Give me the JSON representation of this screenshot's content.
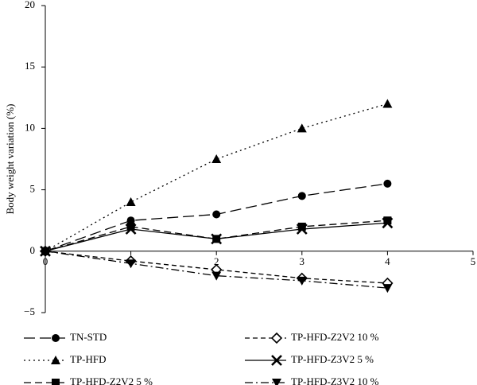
{
  "chart_data": {
    "type": "line",
    "y_label": "Body weight variation (%)",
    "x": [
      0,
      1,
      2,
      3,
      4
    ],
    "xlim": [
      0,
      5
    ],
    "xticks": [
      0,
      1,
      2,
      3,
      4,
      5
    ],
    "ylim": [
      -5,
      20
    ],
    "yticks": [
      {
        "value": -5,
        "label": "−5"
      },
      0,
      5,
      10,
      15,
      20
    ],
    "series": [
      {
        "name": "TN-STD",
        "color": "#000000",
        "marker": "circle",
        "linestyle": "long-dash",
        "values": [
          0,
          2.5,
          3,
          4.5,
          5.5
        ]
      },
      {
        "name": "TP-HFD-Z2V2 10 %",
        "color": "#000000",
        "marker": "diamond-open",
        "linestyle": "short-dash",
        "values": [
          0,
          -0.8,
          -1.5,
          -2.2,
          -2.6
        ]
      },
      {
        "name": "TP-HFD",
        "color": "#000000",
        "marker": "triangle",
        "linestyle": "dotted",
        "values": [
          0,
          4,
          7.5,
          10,
          12
        ]
      },
      {
        "name": "TP-HFD-Z3V2 5 %",
        "color": "#000000",
        "marker": "x",
        "linestyle": "solid",
        "values": [
          0,
          1.8,
          1,
          1.8,
          2.3
        ]
      },
      {
        "name": "TP-HFD-Z2V2 5 %",
        "color": "#000000",
        "marker": "square",
        "linestyle": "dashed",
        "values": [
          0,
          2,
          1,
          2,
          2.5
        ]
      },
      {
        "name": "TP-HFD-Z3V2 10 %",
        "color": "#000000",
        "marker": "triangle-down",
        "linestyle": "dash-dot",
        "values": [
          0,
          -1,
          -2,
          -2.4,
          -3
        ]
      }
    ]
  }
}
